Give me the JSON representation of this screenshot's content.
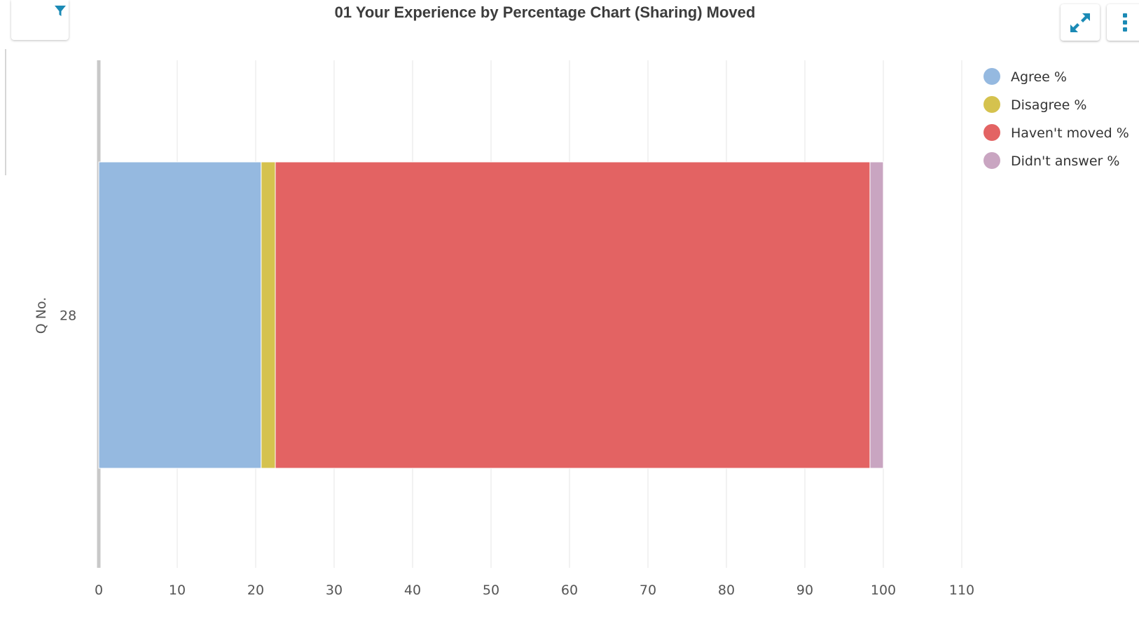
{
  "header": {
    "title": "01 Your Experience by Percentage Chart (Sharing) Moved"
  },
  "icons": {
    "filter": "filter-icon",
    "expand": "expand-icon",
    "more": "more-vertical-icon"
  },
  "colors": {
    "accent": "#1b8ab5",
    "agree": "#95b9e0",
    "disagree": "#d5c24e",
    "havent_moved": "#e36363",
    "didnt_answer": "#c9a5c1"
  },
  "chart_data": {
    "type": "bar",
    "orientation": "horizontal",
    "stacked": true,
    "title": "01 Your Experience by Percentage Chart (Sharing) Moved",
    "ylabel": "Q No.",
    "xlabel": "",
    "categories": [
      "28"
    ],
    "xlim": [
      0,
      110
    ],
    "x_ticks": [
      "0",
      "10",
      "20",
      "30",
      "40",
      "50",
      "60",
      "70",
      "80",
      "90",
      "100",
      "110"
    ],
    "grid": true,
    "legend_position": "top-right",
    "series": [
      {
        "name": "Agree %",
        "values": [
          20.7
        ],
        "color": "#95b9e0"
      },
      {
        "name": "Disagree %",
        "values": [
          1.8
        ],
        "color": "#d5c24e"
      },
      {
        "name": "Haven't moved %",
        "values": [
          75.8
        ],
        "color": "#e36363"
      },
      {
        "name": "Didn't answer %",
        "values": [
          1.7
        ],
        "color": "#c9a5c1"
      }
    ]
  }
}
